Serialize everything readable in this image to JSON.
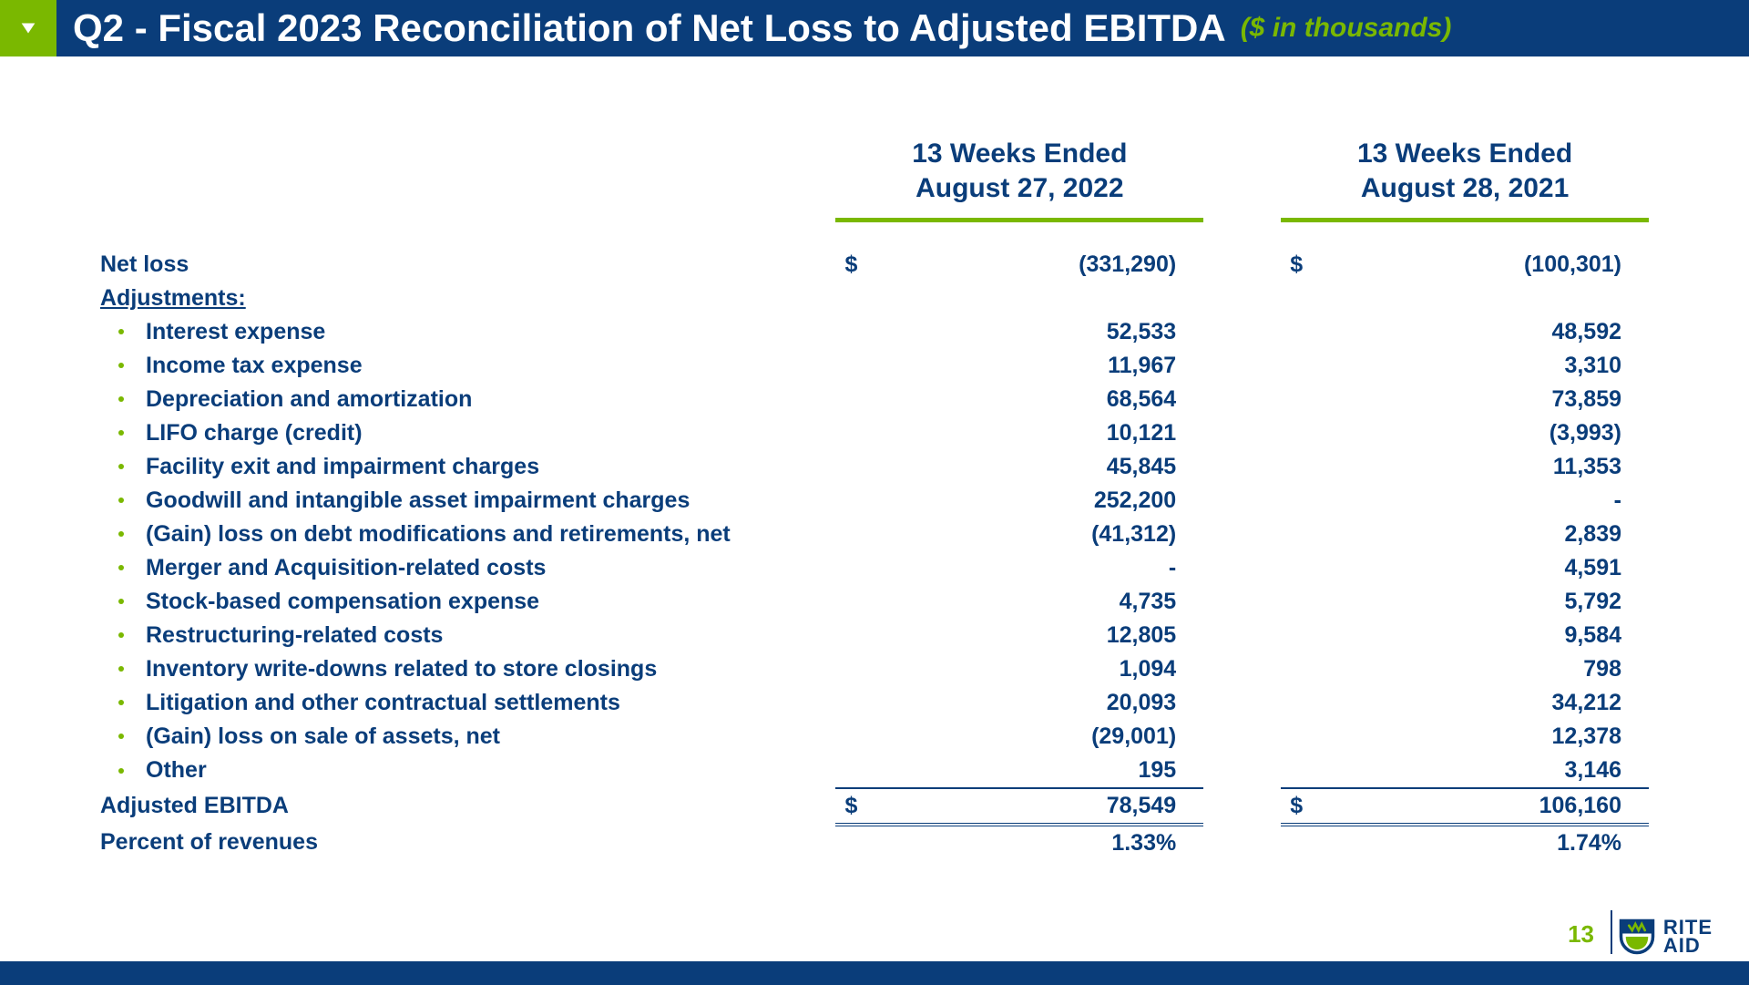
{
  "colors": {
    "brand_blue": "#0a3d7a",
    "brand_green": "#7ab800",
    "white": "#ffffff"
  },
  "header": {
    "title": "Q2 - Fiscal 2023 Reconciliation of Net Loss to Adjusted EBITDA",
    "note": "($ in thousands)"
  },
  "columns": {
    "col1_line1": "13 Weeks Ended",
    "col1_line2": "August 27, 2022",
    "col2_line1": "13 Weeks Ended",
    "col2_line2": "August 28, 2021"
  },
  "rows": {
    "net_loss": {
      "label": "Net loss",
      "sym1": "$",
      "v1": "(331,290)",
      "sym2": "$",
      "v2": "(100,301)"
    },
    "adjustments_label": "Adjustments:",
    "items": [
      {
        "label": "Interest expense",
        "v1": "52,533",
        "v2": "48,592"
      },
      {
        "label": "Income tax expense",
        "v1": "11,967",
        "v2": "3,310"
      },
      {
        "label": "Depreciation and amortization",
        "v1": "68,564",
        "v2": "73,859"
      },
      {
        "label": "LIFO charge (credit)",
        "v1": "10,121",
        "v2": "(3,993)"
      },
      {
        "label": "Facility exit and impairment charges",
        "v1": "45,845",
        "v2": "11,353"
      },
      {
        "label": "Goodwill and intangible asset impairment charges",
        "v1": "252,200",
        "v2": "-"
      },
      {
        "label": "(Gain) loss on debt modifications and retirements, net",
        "v1": "(41,312)",
        "v2": "2,839"
      },
      {
        "label": "Merger and Acquisition-related costs",
        "v1": "-",
        "v2": "4,591"
      },
      {
        "label": "Stock-based compensation expense",
        "v1": "4,735",
        "v2": "5,792"
      },
      {
        "label": "Restructuring-related costs",
        "v1": "12,805",
        "v2": "9,584"
      },
      {
        "label": "Inventory write-downs related to store closings",
        "v1": "1,094",
        "v2": "798"
      },
      {
        "label": "Litigation and other contractual settlements",
        "v1": "20,093",
        "v2": "34,212"
      },
      {
        "label": "(Gain) loss on sale of assets, net",
        "v1": "(29,001)",
        "v2": "12,378"
      },
      {
        "label": "Other",
        "v1": "195",
        "v2": "3,146"
      }
    ],
    "adjusted_ebitda": {
      "label": "Adjusted EBITDA",
      "sym1": "$",
      "v1": "78,549",
      "sym2": "$",
      "v2": "106,160"
    },
    "percent_revenues": {
      "label": "Percent of revenues",
      "v1": "1.33%",
      "v2": "1.74%"
    }
  },
  "footer": {
    "page": "13",
    "logo_line1": "RITE",
    "logo_line2": "AID"
  }
}
